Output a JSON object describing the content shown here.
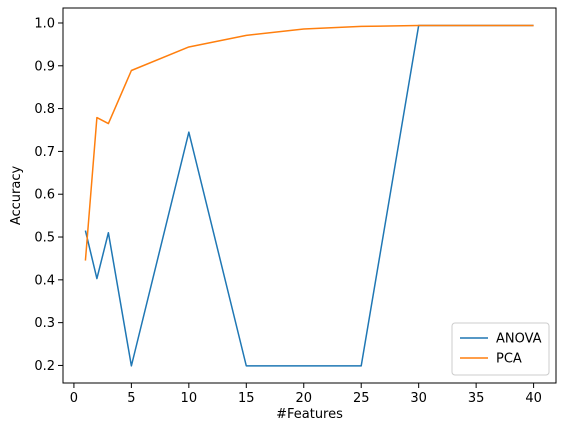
{
  "chart_data": {
    "type": "line",
    "title": "",
    "xlabel": "#Features",
    "ylabel": "Accuracy",
    "xlim": [
      -0.95,
      41.95
    ],
    "ylim": [
      0.159,
      1.035
    ],
    "xticks": [
      0,
      5,
      10,
      15,
      20,
      25,
      30,
      35,
      40
    ],
    "yticks": [
      0.2,
      0.3,
      0.4,
      0.5,
      0.6,
      0.7,
      0.8,
      0.9,
      1.0
    ],
    "xtick_labels": [
      "0",
      "5",
      "10",
      "15",
      "20",
      "25",
      "30",
      "35",
      "40"
    ],
    "ytick_labels": [
      "0.2",
      "0.3",
      "0.4",
      "0.5",
      "0.6",
      "0.7",
      "0.8",
      "0.9",
      "1.0"
    ],
    "grid": false,
    "legend_position": "lower-right",
    "series": [
      {
        "name": "ANOVA",
        "color": "#1f77b4",
        "x": [
          1,
          2,
          3,
          5,
          10,
          15,
          20,
          25,
          30,
          35,
          40
        ],
        "y": [
          0.515,
          0.403,
          0.51,
          0.199,
          0.745,
          0.199,
          0.199,
          0.199,
          0.994,
          0.994,
          0.994
        ]
      },
      {
        "name": "PCA",
        "color": "#ff7f0e",
        "x": [
          1,
          2,
          3,
          5,
          10,
          15,
          20,
          25,
          30,
          35,
          40
        ],
        "y": [
          0.445,
          0.779,
          0.765,
          0.889,
          0.944,
          0.971,
          0.986,
          0.992,
          0.994,
          0.994,
          0.994
        ]
      }
    ]
  }
}
